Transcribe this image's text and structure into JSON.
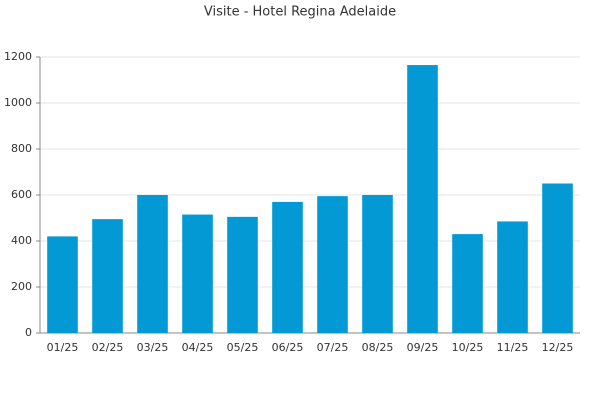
{
  "chart_data": {
    "type": "bar",
    "title": "Visite - Hotel Regina Adelaide",
    "categories": [
      "01/25",
      "02/25",
      "03/25",
      "04/25",
      "05/25",
      "06/25",
      "07/25",
      "08/25",
      "09/25",
      "10/25",
      "11/25",
      "12/25"
    ],
    "values": [
      420,
      495,
      600,
      515,
      505,
      570,
      595,
      600,
      1165,
      430,
      485,
      650
    ],
    "color": "#0399d4",
    "ylim": [
      0,
      1200
    ],
    "yticks": [
      0,
      200,
      400,
      600,
      800,
      1000,
      1200
    ],
    "grid": true
  }
}
